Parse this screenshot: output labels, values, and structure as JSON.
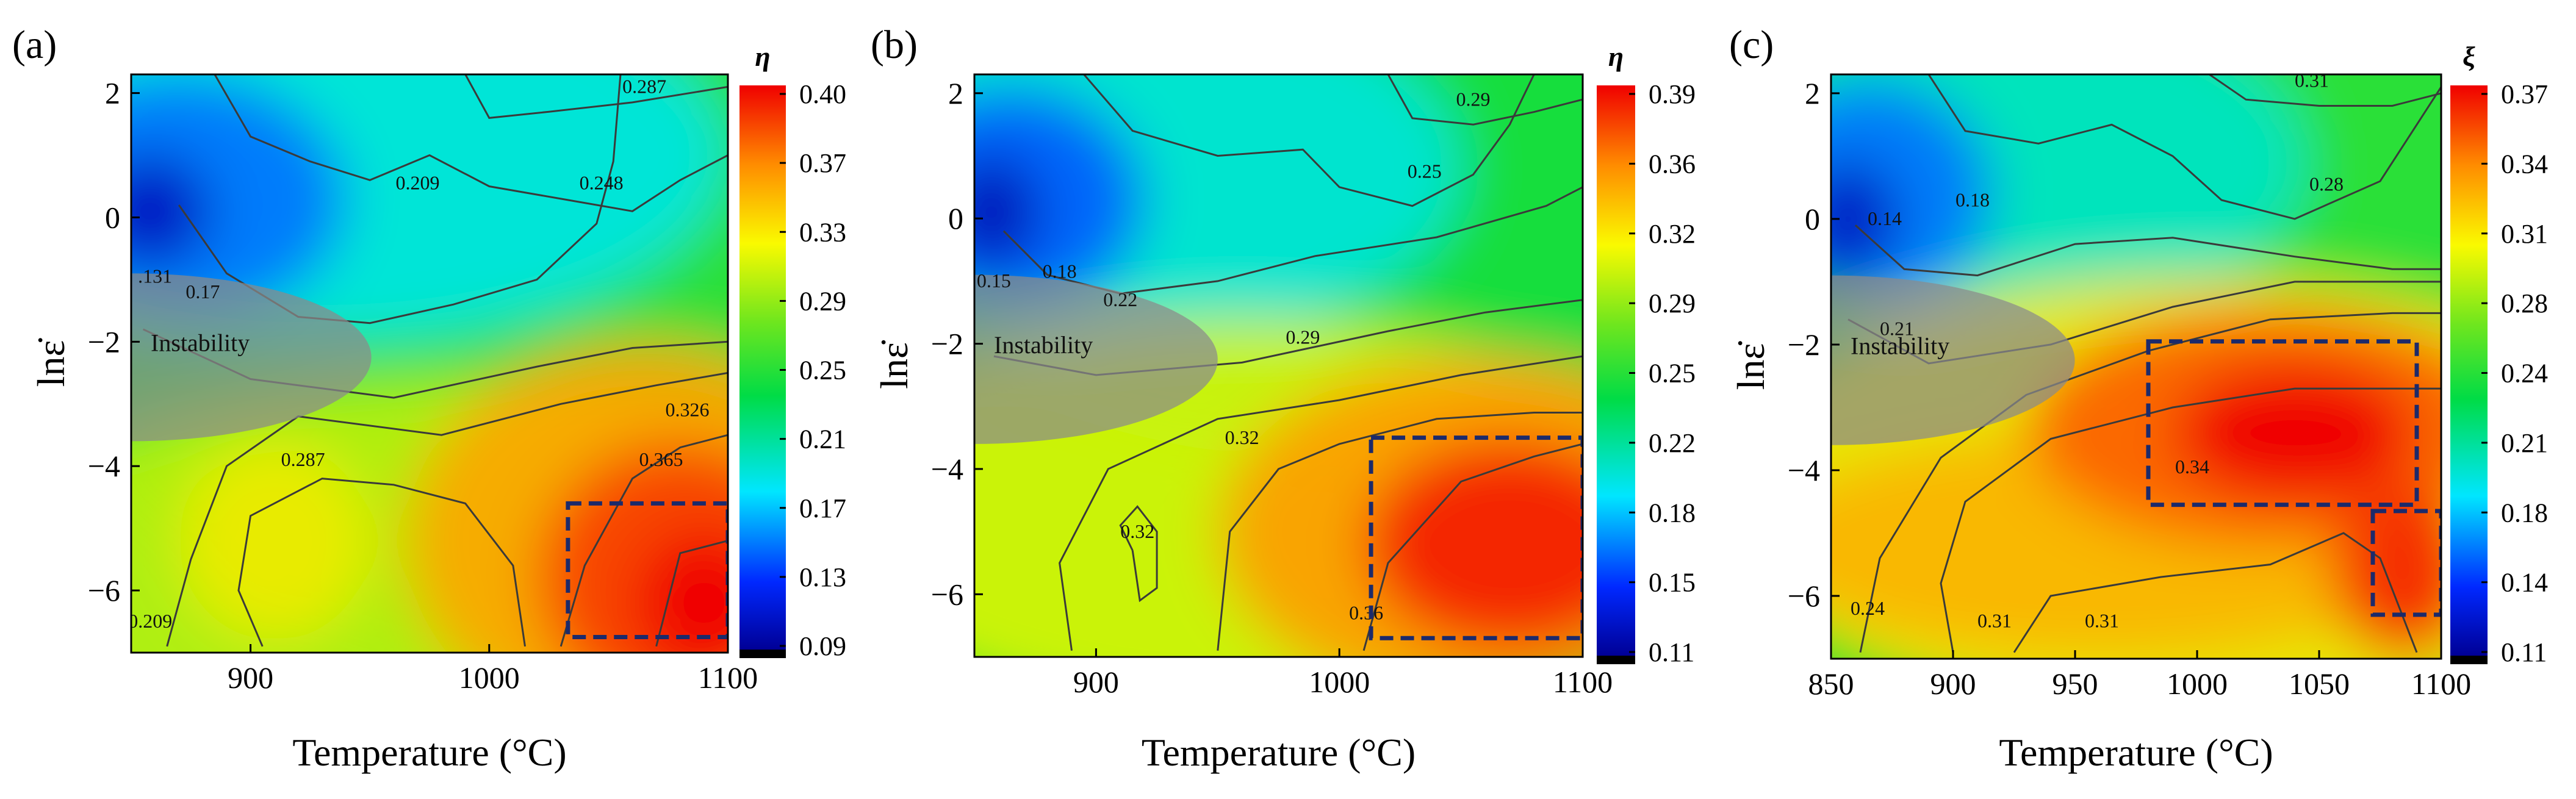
{
  "chart_data": [
    {
      "type": "heatmap",
      "panel_label": "(a)",
      "xlabel": "Temperature (°C)",
      "ylabel": "lnε̇",
      "xlim": [
        850,
        1100
      ],
      "ylim": [
        -7,
        2.3
      ],
      "xticks": [
        900,
        1000,
        1100
      ],
      "yticks": [
        2,
        0,
        -2,
        -4,
        -6
      ],
      "colorbar_title": "η",
      "colorbar_ticks": [
        "0.40",
        "0.37",
        "0.33",
        "0.29",
        "0.25",
        "0.21",
        "0.17",
        "0.13",
        "0.09"
      ],
      "vmin": 0.09,
      "vmax": 0.4,
      "contour_labels": [
        {
          "text": "0.287",
          "x": 1065,
          "y": 2.0
        },
        {
          "text": "0.209",
          "x": 970,
          "y": 0.45
        },
        {
          "text": "0.248",
          "x": 1047,
          "y": 0.45
        },
        {
          "text": ".131",
          "x": 860,
          "y": -1.05
        },
        {
          "text": "0.17",
          "x": 880,
          "y": -1.3
        },
        {
          "text": "0.326",
          "x": 1083,
          "y": -3.2
        },
        {
          "text": "0.287",
          "x": 922,
          "y": -4.0
        },
        {
          "text": "0.365",
          "x": 1072,
          "y": -4.0
        },
        {
          "text": "0.209",
          "x": 858,
          "y": -6.6
        }
      ],
      "instability_label": "Instability",
      "dashed_boxes": [
        {
          "x": [
            1033,
            1100
          ],
          "y": [
            -6.75,
            -4.6
          ]
        }
      ]
    },
    {
      "type": "heatmap",
      "panel_label": "(b)",
      "xlabel": "Temperature (°C)",
      "ylabel": "lnε̇",
      "xlim": [
        850,
        1100
      ],
      "ylim": [
        -7,
        2.3
      ],
      "xticks": [
        900,
        1000,
        1100
      ],
      "yticks": [
        2,
        0,
        -2,
        -4,
        -6
      ],
      "colorbar_title": "η",
      "colorbar_ticks": [
        "0.39",
        "0.36",
        "0.32",
        "0.29",
        "0.25",
        "0.22",
        "0.18",
        "0.15",
        "0.11"
      ],
      "vmin": 0.11,
      "vmax": 0.39,
      "contour_labels": [
        {
          "text": "0.29",
          "x": 1055,
          "y": 1.8
        },
        {
          "text": "0.25",
          "x": 1035,
          "y": 0.65
        },
        {
          "text": "0.15",
          "x": 858,
          "y": -1.1
        },
        {
          "text": "0.18",
          "x": 885,
          "y": -0.95
        },
        {
          "text": "0.22",
          "x": 910,
          "y": -1.4
        },
        {
          "text": "0.29",
          "x": 985,
          "y": -2.0
        },
        {
          "text": "0.32",
          "x": 960,
          "y": -3.6
        },
        {
          "text": "0.32",
          "x": 917,
          "y": -5.1
        },
        {
          "text": "0.36",
          "x": 1011,
          "y": -6.4
        }
      ],
      "instability_label": "Instability",
      "dashed_boxes": [
        {
          "x": [
            1013,
            1100
          ],
          "y": [
            -6.7,
            -3.5
          ]
        }
      ]
    },
    {
      "type": "heatmap",
      "panel_label": "(c)",
      "xlabel": "Temperature (°C)",
      "ylabel": "lnε̇",
      "xlim": [
        850,
        1100
      ],
      "ylim": [
        -7,
        2.3
      ],
      "xticks": [
        850,
        900,
        950,
        1000,
        1050,
        1100
      ],
      "yticks": [
        2,
        0,
        -2,
        -4,
        -6
      ],
      "colorbar_title": "ξ",
      "colorbar_ticks": [
        "0.37",
        "0.34",
        "0.31",
        "0.28",
        "0.24",
        "0.21",
        "0.18",
        "0.14",
        "0.11"
      ],
      "vmin": 0.11,
      "vmax": 0.37,
      "contour_labels": [
        {
          "text": "0.31",
          "x": 1047,
          "y": 2.1
        },
        {
          "text": "0.14",
          "x": 872,
          "y": -0.1
        },
        {
          "text": "0.18",
          "x": 908,
          "y": 0.2
        },
        {
          "text": "0.28",
          "x": 1053,
          "y": 0.45
        },
        {
          "text": "0.21",
          "x": 877,
          "y": -1.85
        },
        {
          "text": "0.34",
          "x": 998,
          "y": -4.05
        },
        {
          "text": "0.24",
          "x": 865,
          "y": -6.3
        },
        {
          "text": "0.31",
          "x": 917,
          "y": -6.5
        },
        {
          "text": "0.31",
          "x": 961,
          "y": -6.5
        }
      ],
      "instability_label": "Instability",
      "dashed_boxes": [
        {
          "x": [
            980,
            1090
          ],
          "y": [
            -4.55,
            -1.95
          ]
        },
        {
          "x": [
            1072,
            1100
          ],
          "y": [
            -6.3,
            -4.65
          ]
        }
      ]
    }
  ]
}
